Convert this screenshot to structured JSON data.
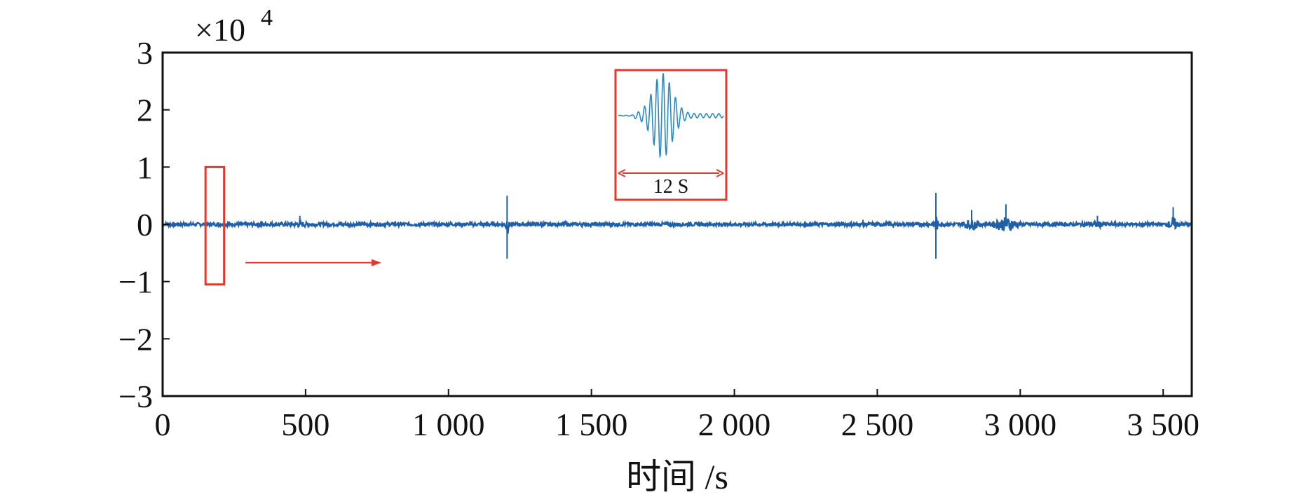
{
  "chart_data": {
    "type": "line",
    "title": "",
    "xlabel": "时间 /s",
    "ylabel": "",
    "y_multiplier_label": "×10",
    "y_multiplier_exponent": "4",
    "xlim": [
      0,
      3600
    ],
    "ylim": [
      -3,
      3
    ],
    "x_ticks": [
      0,
      500,
      1000,
      1500,
      2000,
      2500,
      3000,
      3500
    ],
    "x_tick_labels": [
      "0",
      "500",
      "1 000",
      "1 500",
      "2 000",
      "2 500",
      "3 000",
      "3 500"
    ],
    "y_ticks": [
      -3,
      -2,
      -1,
      0,
      1,
      2,
      3
    ],
    "y_tick_labels": [
      "−3",
      "−2",
      "−1",
      "0",
      "1",
      "2",
      "3"
    ],
    "grid": false,
    "series": [
      {
        "color": "#1f5fa8",
        "baseline_amplitude": 0.03,
        "bursts": [
          {
            "x": 480,
            "peak": 0.15,
            "width": 40
          },
          {
            "x": 1205,
            "peak": 0.5,
            "width": 6
          },
          {
            "x": 1205,
            "trough": -0.6,
            "width": 6
          },
          {
            "x": 2450,
            "peak": 0.08,
            "width": 60
          },
          {
            "x": 2705,
            "peak": 0.55,
            "width": 6
          },
          {
            "x": 2705,
            "trough": -0.6,
            "width": 6
          },
          {
            "x": 2830,
            "peak": 0.25,
            "width": 40
          },
          {
            "x": 2950,
            "peak": 0.35,
            "width": 50
          },
          {
            "x": 3270,
            "peak": 0.15,
            "width": 80
          },
          {
            "x": 3535,
            "peak": 0.3,
            "width": 20
          }
        ]
      }
    ],
    "annotations": {
      "highlight_box_x_range": [
        150,
        215
      ],
      "highlight_box_y_range": [
        -1.05,
        1.0
      ],
      "arrow_x_range": [
        290,
        765
      ],
      "arrow_y": -0.67,
      "highlight_color": "#e03a2f",
      "inset_label": "12 S"
    }
  }
}
